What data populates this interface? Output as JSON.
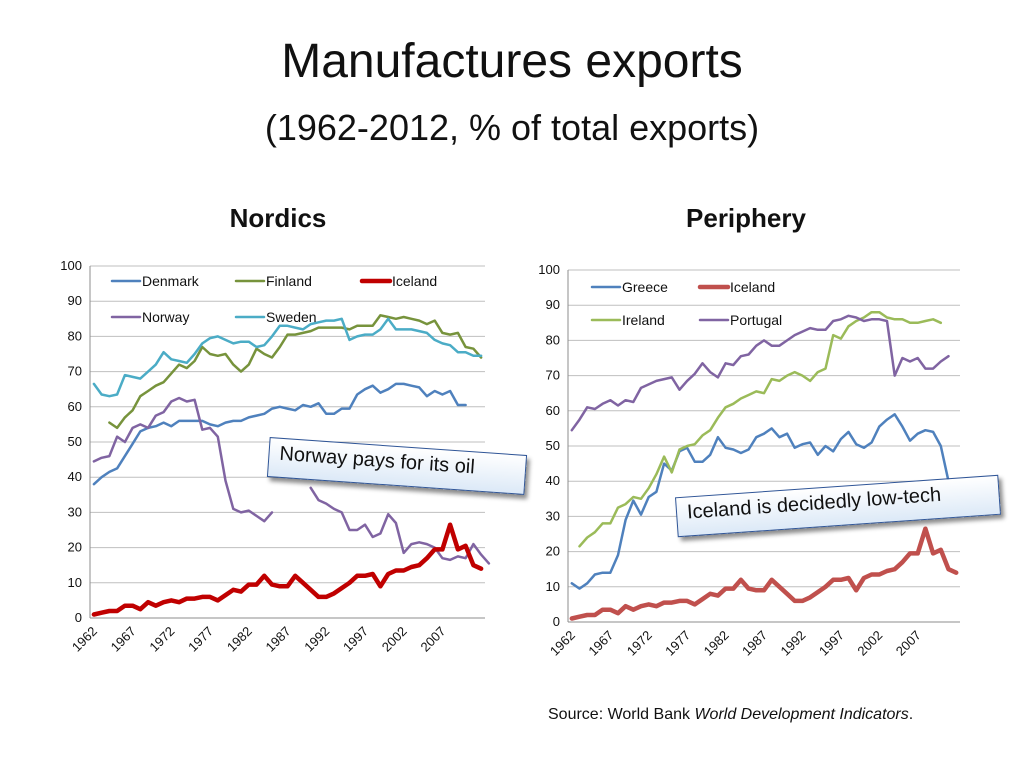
{
  "title": "Manufactures exports",
  "subtitle": "(1962-2012, % of total exports)",
  "source": {
    "prefix": "Source: World Bank ",
    "name": "World Development Indicators",
    "suffix": "."
  },
  "callouts": {
    "norway": "Norway pays for its oil",
    "iceland": "Iceland is decidedly low-tech"
  },
  "chart_data": [
    {
      "type": "line",
      "title": "Nordics",
      "xlabel": "",
      "ylabel": "",
      "ylim": [
        0,
        100
      ],
      "yticks": [
        0,
        10,
        20,
        30,
        40,
        50,
        60,
        70,
        80,
        90,
        100
      ],
      "xticks": [
        "1962",
        "1967",
        "1972",
        "1977",
        "1982",
        "1987",
        "1992",
        "1997",
        "2002",
        "2007"
      ],
      "xstart": 1962,
      "legend_position": "top",
      "grid": true,
      "series": [
        {
          "name": "Denmark",
          "color": "#4f81bd",
          "width": 2.5,
          "start": 1962,
          "values": [
            38,
            40,
            41.5,
            42.5,
            46,
            49.5,
            53,
            54,
            54.5,
            55.5,
            54.5,
            56,
            56,
            56,
            56,
            55,
            54.5,
            55.5,
            56,
            56,
            57,
            57.5,
            58,
            59.5,
            60,
            59.5,
            59,
            60.5,
            60,
            61,
            58,
            58,
            59.5,
            59.5,
            63.5,
            65,
            66,
            64,
            65,
            66.5,
            66.5,
            66,
            65.5,
            63,
            64.5,
            63.5,
            64.5,
            60.5,
            60.5
          ]
        },
        {
          "name": "Finland",
          "color": "#77933c",
          "width": 2.5,
          "start": 1964,
          "values": [
            55.5,
            54,
            57,
            59,
            63,
            64.5,
            66,
            67,
            69.5,
            72,
            71,
            73,
            77,
            75,
            74.5,
            75,
            72,
            70,
            72,
            76.5,
            75,
            74,
            77,
            80.5,
            80.5,
            81,
            81.5,
            82.5,
            82.5,
            82.5,
            82.5,
            82,
            83,
            83,
            83,
            86,
            85.5,
            85,
            85.5,
            85,
            84.5,
            83.5,
            84.5,
            81,
            80.5,
            81,
            77,
            76.5,
            74
          ]
        },
        {
          "name": "Iceland",
          "color": "#c00000",
          "width": 4.5,
          "start": 1962,
          "values": [
            1,
            1.5,
            2,
            2,
            3.5,
            3.5,
            2.5,
            4.5,
            3.5,
            4.5,
            5,
            4.5,
            5.5,
            5.5,
            6,
            6,
            5,
            6.5,
            8,
            7.5,
            9.5,
            9.5,
            12,
            9.5,
            9,
            9,
            12,
            10,
            8,
            6,
            6,
            7,
            8.5,
            10,
            12,
            12,
            12.5,
            9,
            12.5,
            13.5,
            13.5,
            14.5,
            15,
            17,
            19.5,
            19.5,
            26.5,
            19.5,
            20.5,
            15,
            14
          ]
        },
        {
          "name": "Norway",
          "color": "#8064a2",
          "width": 2.5,
          "start": 1962,
          "values": [
            44.5,
            45.5,
            46,
            51.5,
            50,
            54,
            55,
            54,
            57.5,
            58.5,
            61.5,
            62.5,
            61.5,
            62,
            53.5,
            54,
            51.5,
            39,
            31,
            30,
            30.5,
            29,
            27.5,
            30,
            null,
            null,
            null,
            null,
            37,
            33.5,
            32.5,
            31,
            30,
            25,
            25,
            26.5,
            23,
            24,
            29.5,
            27,
            18.5,
            21,
            21.5,
            21,
            20,
            17,
            16.5,
            17.5,
            17,
            21,
            18,
            15.5
          ]
        },
        {
          "name": "Sweden",
          "color": "#4bacc6",
          "width": 2.5,
          "start": 1962,
          "values": [
            66.5,
            63.5,
            63,
            63.5,
            69,
            68.5,
            68,
            70,
            72,
            75.5,
            73.5,
            73,
            72.5,
            75,
            78,
            79.5,
            80,
            79,
            78,
            78.5,
            78.5,
            77,
            77.5,
            80,
            83,
            83,
            82.5,
            82,
            83.5,
            84,
            84.5,
            84.5,
            85,
            79,
            80,
            80.5,
            80.5,
            82,
            85,
            82,
            82,
            82,
            81.5,
            81,
            79,
            78,
            77.5,
            75.5,
            75.5,
            74.5,
            74.5
          ]
        }
      ]
    },
    {
      "type": "line",
      "title": "Periphery",
      "xlabel": "",
      "ylabel": "",
      "ylim": [
        0,
        100
      ],
      "yticks": [
        0,
        10,
        20,
        30,
        40,
        50,
        60,
        70,
        80,
        90,
        100
      ],
      "xticks": [
        "1962",
        "1967",
        "1972",
        "1977",
        "1982",
        "1987",
        "1992",
        "1997",
        "2002",
        "2007"
      ],
      "xstart": 1962,
      "legend_position": "top",
      "grid": true,
      "series": [
        {
          "name": "Greece",
          "color": "#4f81bd",
          "width": 2.5,
          "start": 1962,
          "values": [
            11,
            9.5,
            11,
            13.5,
            14,
            14,
            19,
            29,
            34.5,
            30.5,
            35.5,
            37,
            45,
            43,
            48.5,
            49.5,
            45.5,
            45.5,
            47.5,
            52.5,
            49.5,
            49,
            48,
            49,
            52.5,
            53.5,
            55,
            52.5,
            53.5,
            49.5,
            50.5,
            51,
            47.5,
            50,
            48.5,
            52,
            54,
            50.5,
            49.5,
            51,
            55.5,
            57.5,
            59,
            55.5,
            51.5,
            53.5,
            54.5,
            54,
            50,
            40
          ]
        },
        {
          "name": "Iceland",
          "color": "#c0504d",
          "width": 4.5,
          "start": 1962,
          "values": [
            1,
            1.5,
            2,
            2,
            3.5,
            3.5,
            2.5,
            4.5,
            3.5,
            4.5,
            5,
            4.5,
            5.5,
            5.5,
            6,
            6,
            5,
            6.5,
            8,
            7.5,
            9.5,
            9.5,
            12,
            9.5,
            9,
            9,
            12,
            10,
            8,
            6,
            6,
            7,
            8.5,
            10,
            12,
            12,
            12.5,
            9,
            12.5,
            13.5,
            13.5,
            14.5,
            15,
            17,
            19.5,
            19.5,
            26.5,
            19.5,
            20.5,
            15,
            14
          ]
        },
        {
          "name": "Ireland",
          "color": "#9bbb59",
          "width": 2.5,
          "start": 1963,
          "values": [
            21.5,
            24,
            25.5,
            28,
            28,
            32.5,
            33.5,
            35.5,
            35,
            38,
            42,
            47,
            42.5,
            49,
            50,
            50.5,
            53,
            54.5,
            58,
            61,
            62,
            63.5,
            64.5,
            65.5,
            65,
            69,
            68.5,
            70,
            71,
            70,
            68.5,
            71,
            72,
            81.5,
            80.5,
            84,
            85.5,
            86.5,
            88,
            88,
            86.5,
            86,
            86,
            85,
            85,
            85.5,
            86,
            85
          ]
        },
        {
          "name": "Portugal",
          "color": "#8064a2",
          "width": 2.5,
          "start": 1962,
          "values": [
            54.5,
            57.5,
            61,
            60.5,
            62,
            63,
            61.5,
            63,
            62.5,
            66.5,
            67.5,
            68.5,
            69,
            69.5,
            66,
            68.5,
            70.5,
            73.5,
            71,
            69.5,
            73.5,
            73,
            75.5,
            76,
            78.5,
            80,
            78.5,
            78.5,
            80,
            81.5,
            82.5,
            83.5,
            83,
            83,
            85.5,
            86,
            87,
            86.5,
            85.5,
            86,
            86,
            85.5,
            70,
            75,
            74,
            75,
            72,
            72,
            74,
            75.5
          ]
        }
      ]
    }
  ]
}
